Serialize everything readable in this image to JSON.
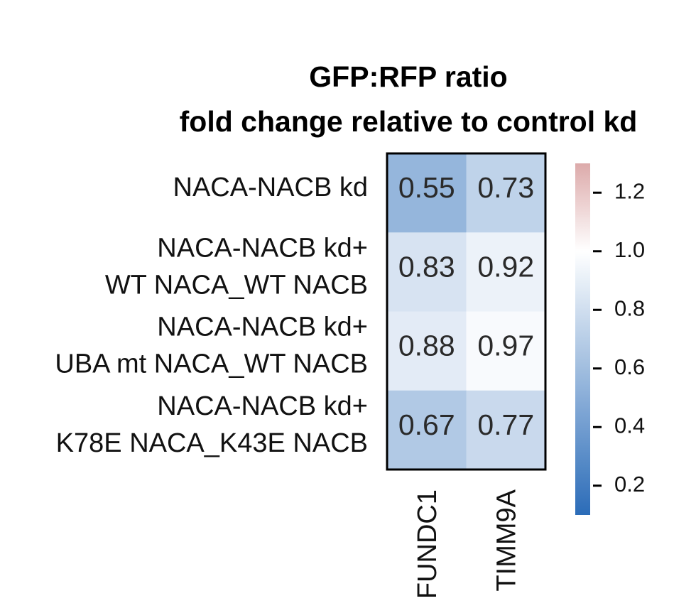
{
  "chart_data": {
    "type": "heatmap",
    "title_lines": [
      "GFP:RFP ratio",
      "fold change relative to control kd"
    ],
    "rows": [
      {
        "label_lines": [
          "NACA-NACB kd"
        ]
      },
      {
        "label_lines": [
          "NACA-NACB kd+",
          "WT NACA_WT NACB"
        ]
      },
      {
        "label_lines": [
          "NACA-NACB kd+",
          "UBA mt NACA_WT NACB"
        ]
      },
      {
        "label_lines": [
          "NACA-NACB kd+",
          "K78E NACA_K43E NACB"
        ]
      }
    ],
    "columns": [
      "FUNDC1",
      "TIMM9A"
    ],
    "values": [
      [
        0.55,
        0.73
      ],
      [
        0.83,
        0.92
      ],
      [
        0.88,
        0.97
      ],
      [
        0.67,
        0.77
      ]
    ],
    "value_labels": [
      [
        "0.55",
        "0.73"
      ],
      [
        "0.83",
        "0.92"
      ],
      [
        "0.88",
        "0.97"
      ],
      [
        "0.67",
        "0.77"
      ]
    ],
    "colorbar": {
      "min": 0.1,
      "max": 1.3,
      "center": 1.0,
      "ticks": [
        0.2,
        0.4,
        0.6,
        0.8,
        1.0,
        1.2
      ],
      "tick_labels": [
        "0.2",
        "0.4",
        "0.6",
        "0.8",
        "1.0",
        "1.2"
      ],
      "colors": {
        "low": "#2b6cb8",
        "center": "#ffffff",
        "high": "#dcaaaa"
      }
    },
    "grid": false,
    "legend": "right"
  }
}
